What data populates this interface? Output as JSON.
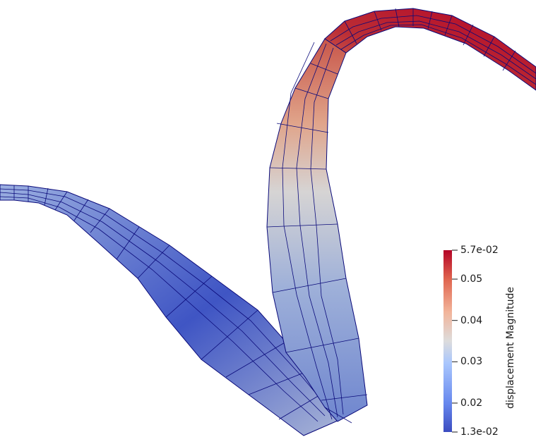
{
  "render": {
    "colors": {
      "background": "#ffffff",
      "mesh_line": "#0a0a7a",
      "low": "#3b4cc0",
      "mid": "#dddcdc",
      "high": "#b40426"
    },
    "colormap": "cool-to-warm"
  },
  "colorbar": {
    "title": "displacement Magnitude",
    "range": [
      0.013,
      0.057
    ],
    "ticks": [
      {
        "value": 0.057,
        "label": "5.7e-02"
      },
      {
        "value": 0.05,
        "label": "0.05"
      },
      {
        "value": 0.04,
        "label": "0.04"
      },
      {
        "value": 0.03,
        "label": "0.03"
      },
      {
        "value": 0.02,
        "label": "0.02"
      },
      {
        "value": 0.013,
        "label": "1.3e-02"
      }
    ]
  }
}
